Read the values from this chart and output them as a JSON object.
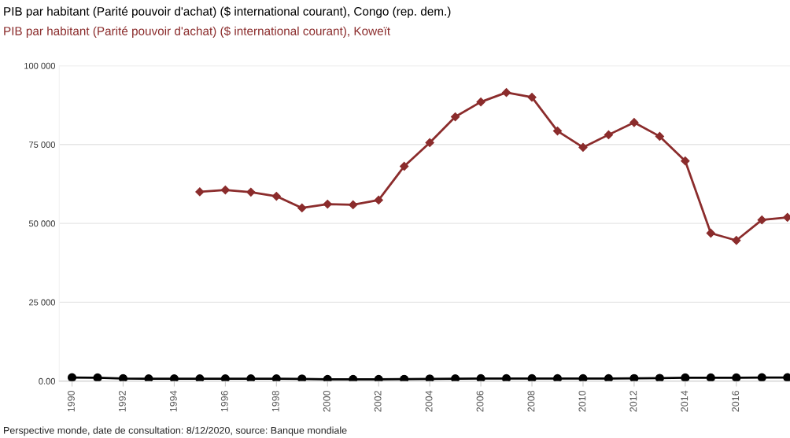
{
  "chart_data": {
    "type": "line",
    "x": [
      1990,
      1991,
      1992,
      1993,
      1994,
      1995,
      1996,
      1997,
      1998,
      1999,
      2000,
      2001,
      2002,
      2003,
      2004,
      2005,
      2006,
      2007,
      2008,
      2009,
      2010,
      2011,
      2012,
      2013,
      2014,
      2015,
      2016,
      2017,
      2018
    ],
    "series": [
      {
        "name": "PIB par habitant (Parité pouvoir d'achat) ($ international courant), Congo (rep. dem.)",
        "color": "#000000",
        "marker": "circle",
        "values": [
          1100,
          1050,
          800,
          750,
          750,
          750,
          750,
          750,
          750,
          700,
          550,
          550,
          550,
          600,
          700,
          750,
          800,
          800,
          800,
          800,
          800,
          800,
          850,
          900,
          1050,
          1050,
          1050,
          1100,
          1100
        ]
      },
      {
        "name": "PIB par habitant (Parité pouvoir d'achat) ($ international courant), Koweït",
        "color": "#8b2c2c",
        "marker": "diamond",
        "x": [
          1995,
          1996,
          1997,
          1998,
          1999,
          2000,
          2001,
          2002,
          2003,
          2004,
          2005,
          2006,
          2007,
          2008,
          2009,
          2010,
          2011,
          2012,
          2013,
          2014,
          2015,
          2016,
          2017,
          2018
        ],
        "values": [
          60000,
          60600,
          59900,
          58600,
          54900,
          56100,
          55900,
          57400,
          68100,
          75600,
          83800,
          88500,
          91500,
          90000,
          79300,
          74100,
          78100,
          82000,
          77600,
          69800,
          46900,
          44600,
          51100,
          51900
        ]
      }
    ],
    "xlim": [
      1989.5,
      2018.1
    ],
    "xticks": [
      1990,
      1992,
      1994,
      1996,
      1998,
      2000,
      2002,
      2004,
      2006,
      2008,
      2010,
      2012,
      2014,
      2016
    ],
    "ylim": [
      0,
      100000
    ],
    "yticks": [
      {
        "value": 0,
        "label": "0.00"
      },
      {
        "value": 25000,
        "label": "25 000"
      },
      {
        "value": 50000,
        "label": "50 000"
      },
      {
        "value": 75000,
        "label": "75 000"
      },
      {
        "value": 100000,
        "label": "100 000"
      }
    ],
    "grid": "y",
    "line_style": "solid",
    "annotations": [
      "Perspective monde, date de consultation: 8/12/2020, source: Banque mondiale"
    ]
  }
}
